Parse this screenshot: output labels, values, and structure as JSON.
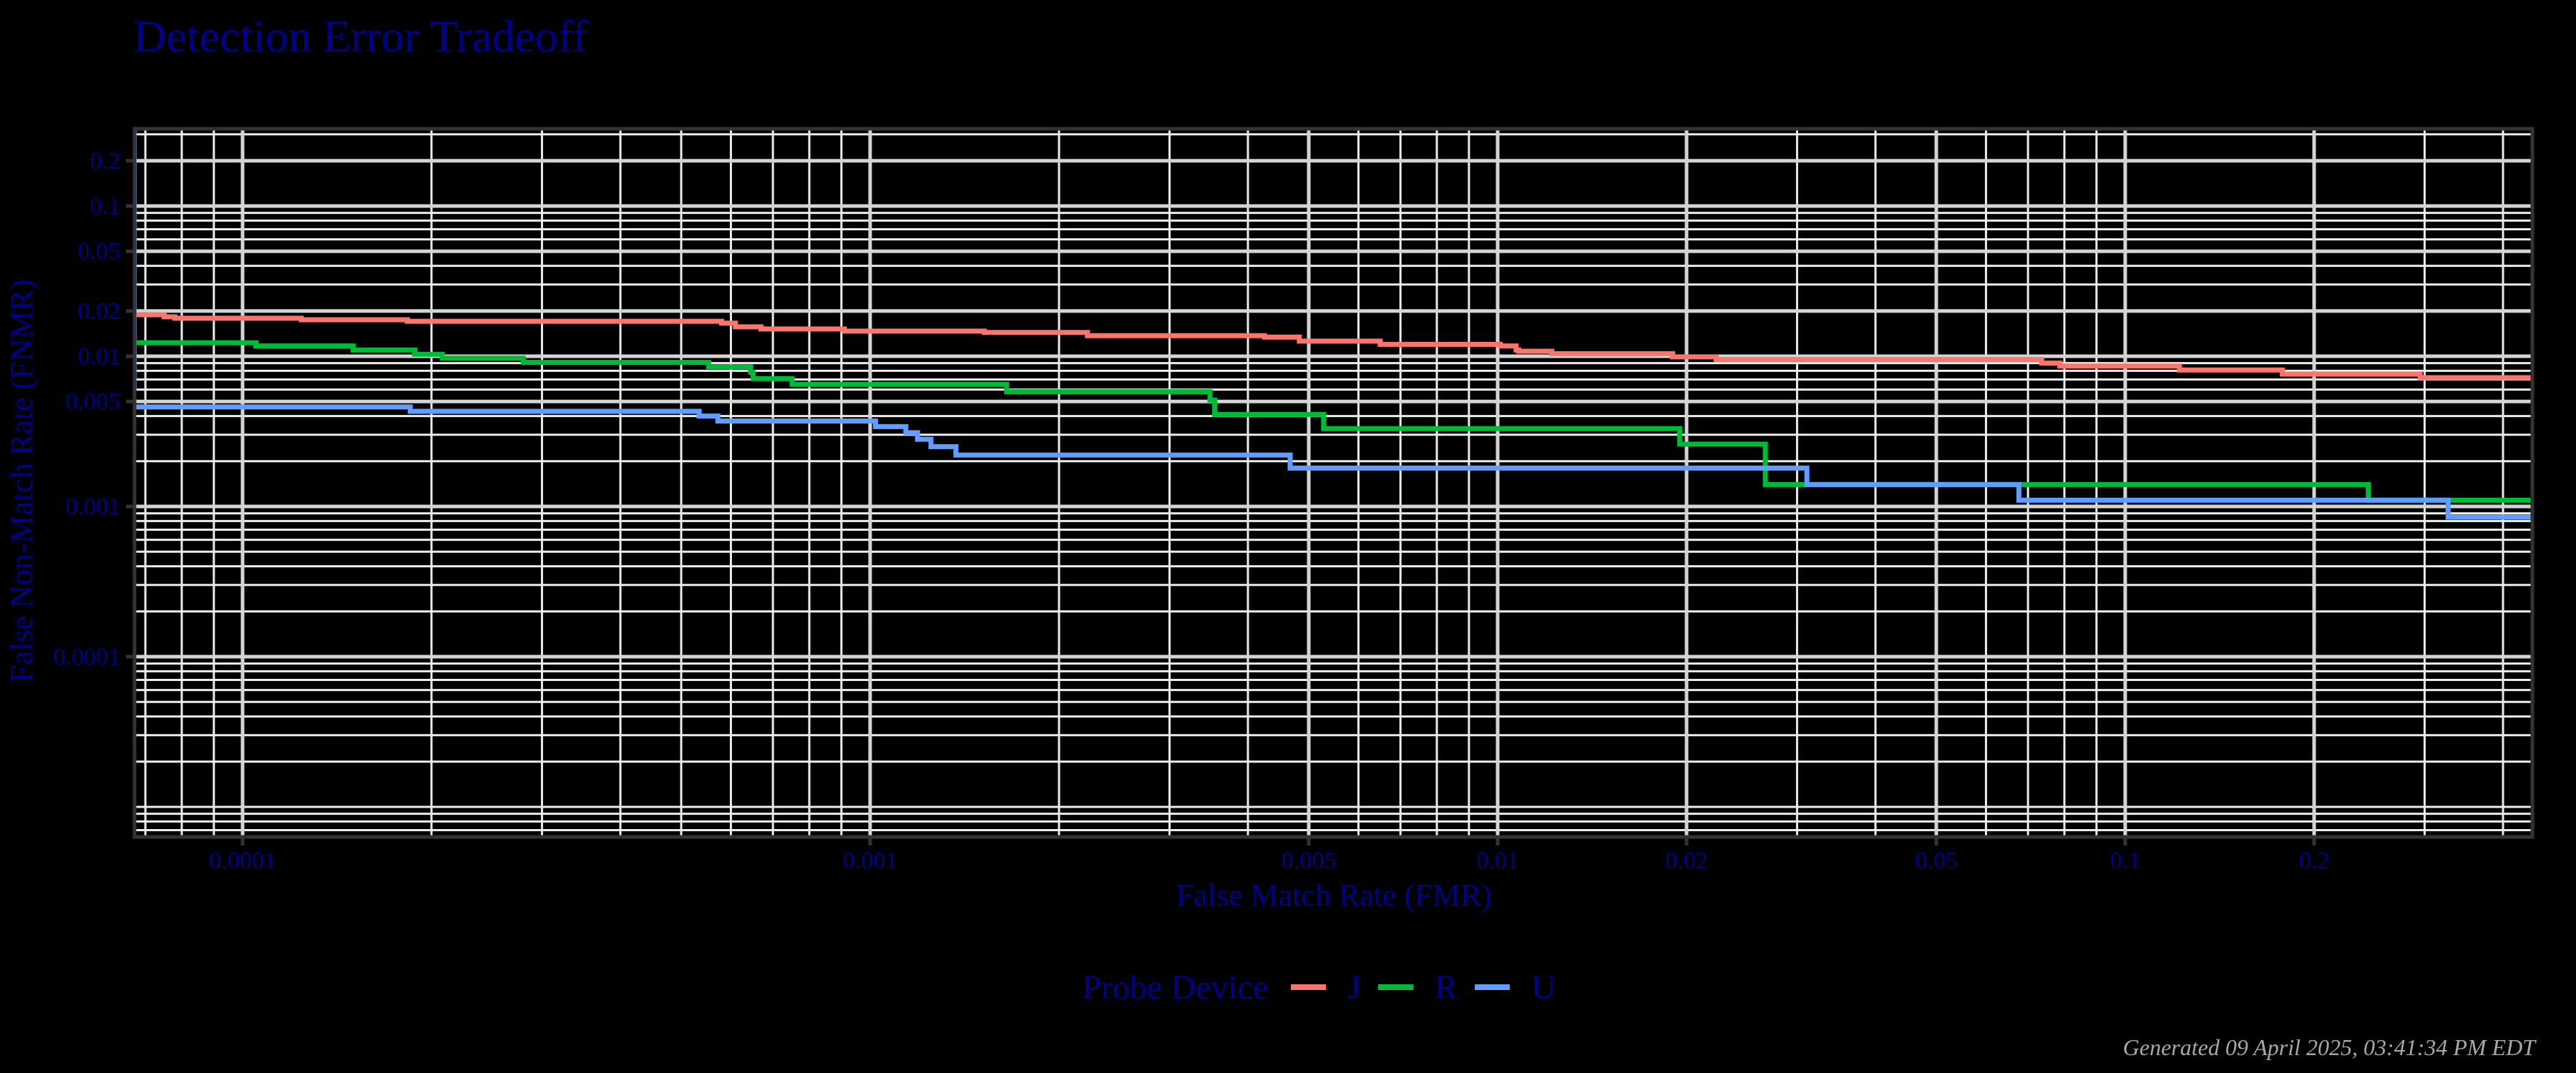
{
  "title": "Detection Error Tradeoff",
  "footer": "Generated 09 April 2025, 03:41:34 PM EDT",
  "colors": {
    "background": "#000000",
    "text": "#00008B",
    "grid_major": "#d4d4d4",
    "grid_minor": "#ececec",
    "panel_border": "#333333",
    "footer": "#a8a8a8"
  },
  "legend": {
    "title": "Probe Device",
    "items": [
      {
        "label": "J",
        "color": "#F8766D"
      },
      {
        "label": "R",
        "color": "#00BA38"
      },
      {
        "label": "U",
        "color": "#619CFF"
      }
    ]
  },
  "chart_data": {
    "type": "line",
    "subtype": "step",
    "title": "Detection Error Tradeoff",
    "xlabel": "False Match Rate (FMR)",
    "ylabel": "False Non-Match Rate (FNMR)",
    "xscale": "log10",
    "yscale": "log10",
    "xlim": [
      6.7e-05,
      0.445
    ],
    "ylim": [
      6.3e-06,
      0.32
    ],
    "x_ticks": [
      0.0001,
      0.001,
      0.005,
      0.01,
      0.02,
      0.05,
      0.1,
      0.2
    ],
    "x_tick_labels": [
      "0.0001",
      "0.001",
      "0.005",
      "0.01",
      "0.02",
      "0.05",
      "0.1",
      "0.2"
    ],
    "y_ticks": [
      0.2,
      0.1,
      0.05,
      0.02,
      0.01,
      0.005,
      0.001,
      0.0001
    ],
    "y_tick_labels": [
      "0.2",
      "0.1",
      "0.05",
      "0.02",
      "0.01",
      "0.005",
      "0.001",
      "0.0001"
    ],
    "grid": true,
    "legend_position": "bottom",
    "legend_title": "Probe Device",
    "series": [
      {
        "name": "J",
        "color": "#F8766D",
        "x": [
          6.7e-05,
          7.5e-05,
          7.8e-05,
          0.000124,
          0.000183,
          0.00058,
          0.00061,
          0.00067,
          0.00091,
          0.00152,
          0.00222,
          0.00425,
          0.00483,
          0.0065,
          0.0101,
          0.0107,
          0.0108,
          0.0122,
          0.019,
          0.0223,
          0.0736,
          0.0787,
          0.122,
          0.178,
          0.295,
          0.445
        ],
        "y": [
          0.0189,
          0.0183,
          0.0179,
          0.0175,
          0.0171,
          0.0166,
          0.0157,
          0.0152,
          0.0147,
          0.0144,
          0.0137,
          0.0134,
          0.0126,
          0.012,
          0.0117,
          0.011,
          0.0108,
          0.0104,
          0.0099,
          0.0095,
          0.009,
          0.0086,
          0.0081,
          0.0076,
          0.0072,
          0.0072
        ]
      },
      {
        "name": "R",
        "color": "#00BA38",
        "x": [
          6.7e-05,
          0.000105,
          0.00015,
          0.000188,
          0.000208,
          0.00028,
          0.000553,
          0.000645,
          0.000651,
          0.000751,
          0.00165,
          0.00348,
          0.00354,
          0.00528,
          0.0195,
          0.0267,
          0.244,
          0.445
        ],
        "y": [
          0.0123,
          0.0117,
          0.011,
          0.0103,
          0.0097,
          0.0091,
          0.0085,
          0.0078,
          0.0071,
          0.0065,
          0.0058,
          0.0051,
          0.0041,
          0.0033,
          0.0026,
          0.0014,
          0.0011,
          0.0011
        ]
      },
      {
        "name": "U",
        "color": "#619CFF",
        "x": [
          6.7e-05,
          0.000185,
          0.000534,
          0.000572,
          0.00102,
          0.00114,
          0.00119,
          0.00125,
          0.00137,
          0.00467,
          0.0311,
          0.0677,
          0.327,
          0.445
        ],
        "y": [
          0.0046,
          0.0043,
          0.004,
          0.0037,
          0.0034,
          0.0031,
          0.0028,
          0.0025,
          0.0022,
          0.0018,
          0.0014,
          0.0011,
          0.00085,
          0.00085
        ]
      }
    ]
  }
}
